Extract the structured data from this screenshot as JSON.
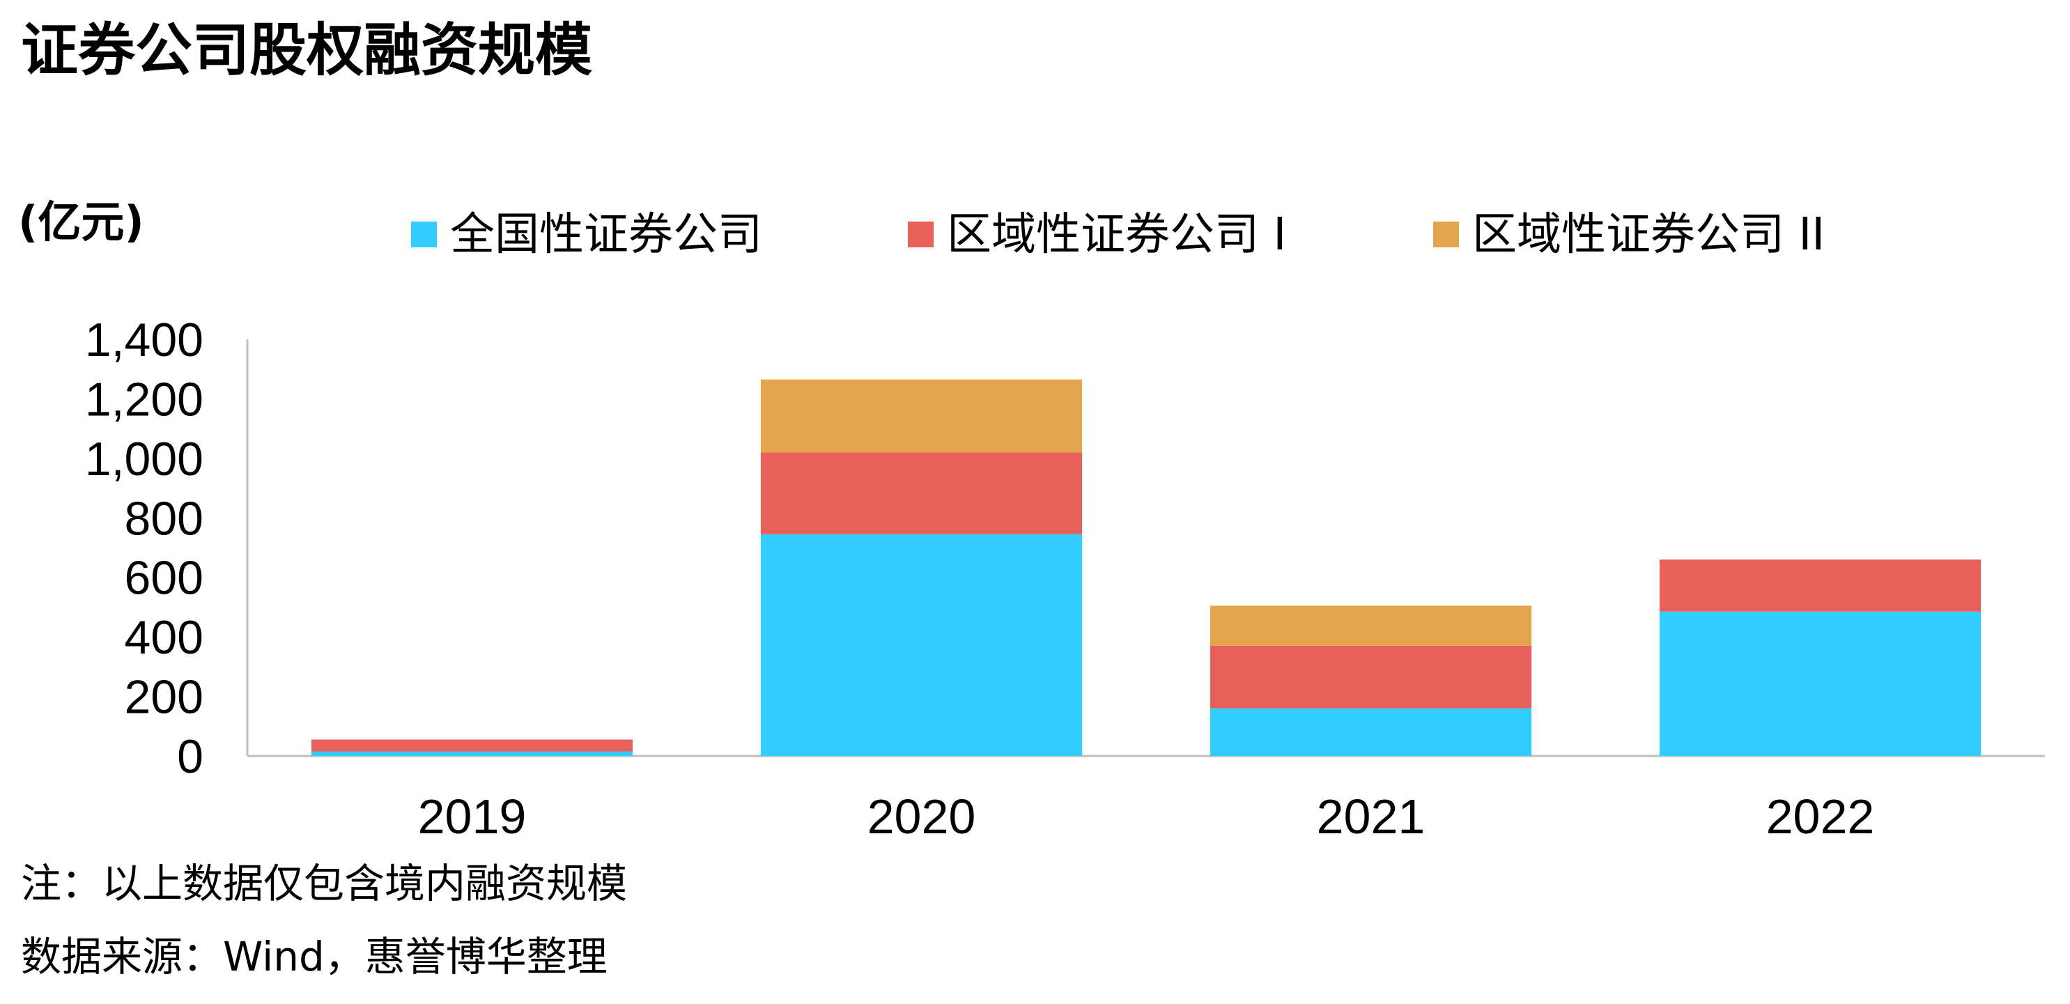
{
  "title": "证券公司股权融资规模",
  "unit_label": "(亿元)",
  "note": "注：以上数据仅包含境内融资规模",
  "source": "数据来源：Wind，惠誉博华整理",
  "colors": {
    "series_0": "#33CCFF",
    "series_1": "#E8605A",
    "series_2": "#E5A54E",
    "axis": "#BFBFBF",
    "text": "#000000"
  },
  "chart_data": {
    "type": "bar",
    "stacked": true,
    "title": "证券公司股权融资规模",
    "ylabel": "(亿元)",
    "xlabel": "",
    "categories": [
      "2019",
      "2020",
      "2021",
      "2022"
    ],
    "series": [
      {
        "name": "全国性证券公司",
        "values": [
          15,
          745,
          160,
          485
        ]
      },
      {
        "name": "区域性证券公司 I",
        "values": [
          40,
          275,
          210,
          175
        ]
      },
      {
        "name": "区域性证券公司 II",
        "values": [
          0,
          245,
          135,
          0
        ]
      }
    ],
    "ylim": [
      0,
      1400
    ],
    "yticks": [
      0,
      200,
      400,
      600,
      800,
      1000,
      1200,
      1400
    ],
    "ytick_labels": [
      "0",
      "200",
      "400",
      "600",
      "800",
      "1,000",
      "1,200",
      "1,400"
    ],
    "grid": false,
    "legend_position": "top"
  }
}
